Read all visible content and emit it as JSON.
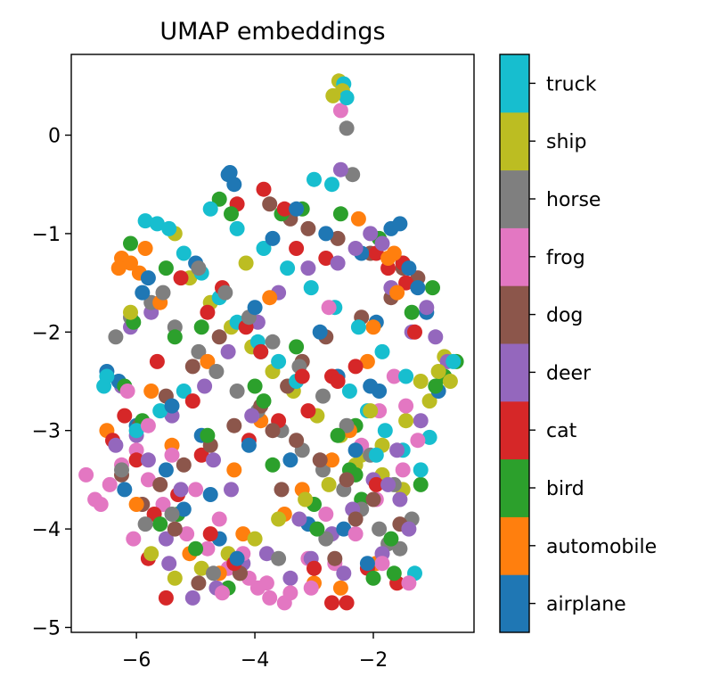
{
  "chart_data": {
    "type": "scatter",
    "title": "UMAP embeddings",
    "xlabel": "",
    "ylabel": "",
    "xlim": [
      -7.1,
      -0.3
    ],
    "ylim": [
      -5.05,
      0.82
    ],
    "xticks": [
      -6,
      -4,
      -2
    ],
    "yticks": [
      0,
      -1,
      -2,
      -3,
      -4,
      -5
    ],
    "xtick_labels": [
      "−6",
      "−4",
      "−2"
    ],
    "ytick_labels": [
      "0",
      "−1",
      "−2",
      "−3",
      "−4",
      "−5"
    ],
    "grid": false,
    "colorbar": {
      "placement": "right",
      "labels": [
        "airplane",
        "automobile",
        "bird",
        "cat",
        "deer",
        "dog",
        "frog",
        "horse",
        "ship",
        "truck"
      ],
      "colors": [
        "#1f77b4",
        "#ff7f0e",
        "#2ca02c",
        "#d62728",
        "#9467bd",
        "#8c564b",
        "#e377c2",
        "#7f7f7f",
        "#bcbd22",
        "#17becf"
      ]
    },
    "series": [
      {
        "name": "airplane",
        "x": [
          -4.45,
          -4.42,
          -4.35,
          -1.95,
          -1.7,
          -1.55,
          -2.6,
          -2.8,
          -1.1,
          -5.0,
          -5.8,
          -2.2,
          -3.9,
          -6.3,
          -4.9,
          -4.1,
          -6.0,
          -1.9,
          -5.5,
          -3.4,
          -2.05,
          -4.75,
          -0.9,
          -5.2,
          -3.1,
          -2.5,
          -4.6,
          -6.5,
          -3.7,
          -2.3,
          -5.9,
          -1.4,
          -4.0,
          -2.9,
          -5.4,
          -3.3,
          -1.25,
          -6.2,
          -4.3,
          -2.1
        ],
        "y": [
          -0.4,
          -0.38,
          -0.5,
          -1.9,
          -0.95,
          -0.9,
          -2.45,
          -1.0,
          -1.8,
          -1.3,
          -1.45,
          -1.2,
          -2.2,
          -2.5,
          -3.05,
          -3.15,
          -2.95,
          -2.6,
          -3.4,
          -3.3,
          -2.55,
          -3.65,
          -2.6,
          -3.8,
          -3.95,
          -4.0,
          -4.1,
          -2.4,
          -1.05,
          -3.2,
          -1.6,
          -1.35,
          -1.75,
          -2.0,
          -2.75,
          -0.75,
          -1.55,
          -3.6,
          -4.3,
          -4.35
        ]
      },
      {
        "name": "automobile",
        "x": [
          -6.25,
          -6.1,
          -5.85,
          -5.95,
          -6.3,
          -5.6,
          -4.8,
          -3.9,
          -2.1,
          -2.0,
          -1.75,
          -1.65,
          -2.4,
          -2.7,
          -3.2,
          -3.5,
          -4.2,
          -5.1,
          -5.4,
          -6.5,
          -6.0,
          -4.6,
          -3.0,
          -2.55,
          -1.95,
          -4.35,
          -5.75,
          -3.75,
          -2.25,
          -1.6
        ],
        "y": [
          -1.25,
          -1.3,
          -1.15,
          -1.4,
          -1.35,
          -1.7,
          -2.3,
          -2.9,
          -2.3,
          -1.95,
          -1.25,
          -1.2,
          -3.0,
          -3.3,
          -3.6,
          -3.85,
          -4.05,
          -4.25,
          -3.15,
          -3.0,
          -3.75,
          -4.45,
          -4.55,
          -4.6,
          -4.35,
          -3.4,
          -2.6,
          -1.65,
          -0.85,
          -1.6
        ]
      },
      {
        "name": "bird",
        "x": [
          -4.6,
          -4.4,
          -3.55,
          -3.2,
          -2.55,
          -1.9,
          -1.5,
          -1.0,
          -0.6,
          -0.8,
          -1.2,
          -2.3,
          -2.2,
          -3.0,
          -3.7,
          -4.0,
          -4.8,
          -5.3,
          -5.0,
          -5.6,
          -6.1,
          -6.05,
          -5.35,
          -4.25,
          -4.45,
          -2.4,
          -2.3,
          -1.35,
          -2.6,
          -3.3,
          -6.2,
          -5.9,
          -4.9,
          -3.85,
          -2.95,
          -1.7,
          -0.95,
          -5.5,
          -1.65,
          -2.0
        ],
        "y": [
          -0.65,
          -0.8,
          -0.8,
          -0.75,
          -0.8,
          -1.05,
          -1.3,
          -1.55,
          -2.3,
          -2.45,
          -3.55,
          -2.95,
          -3.7,
          -3.75,
          -3.35,
          -2.55,
          -3.05,
          -3.85,
          -4.2,
          -3.95,
          -1.1,
          -1.9,
          -2.05,
          -4.45,
          -4.6,
          -3.4,
          -3.45,
          -1.8,
          -3.05,
          -2.15,
          -2.55,
          -2.9,
          -1.95,
          -2.7,
          -4.0,
          -4.1,
          -2.55,
          -1.35,
          -4.45,
          -4.5
        ]
      },
      {
        "name": "cat",
        "x": [
          -4.3,
          -3.85,
          -3.5,
          -3.3,
          -2.8,
          -1.95,
          -1.75,
          -1.5,
          -1.45,
          -2.3,
          -2.7,
          -3.1,
          -3.6,
          -4.1,
          -4.9,
          -5.3,
          -5.7,
          -6.0,
          -6.2,
          -5.65,
          -5.25,
          -4.55,
          -4.15,
          -3.2,
          -2.6,
          -1.95,
          -2.1,
          -2.7,
          -5.5,
          -5.8,
          -4.75,
          -4.35,
          -3.0,
          -2.45,
          -1.6,
          -3.9,
          -4.8,
          -5.05,
          -6.4,
          -1.3
        ],
        "y": [
          -0.7,
          -0.55,
          -0.75,
          -1.15,
          -1.25,
          -1.2,
          -1.35,
          -1.3,
          -1.5,
          -2.35,
          -2.45,
          -2.8,
          -2.9,
          -3.1,
          -3.25,
          -3.65,
          -3.85,
          -3.3,
          -2.85,
          -2.3,
          -1.45,
          -1.55,
          -1.95,
          -2.45,
          -2.5,
          -3.55,
          -4.4,
          -4.75,
          -4.7,
          -4.3,
          -4.05,
          -4.35,
          -4.4,
          -4.75,
          -4.55,
          -2.2,
          -1.8,
          -2.7,
          -3.1,
          -2.0
        ]
      },
      {
        "name": "deer",
        "x": [
          -6.25,
          -6.1,
          -5.75,
          -6.0,
          -5.4,
          -4.85,
          -4.45,
          -3.95,
          -3.6,
          -3.1,
          -2.6,
          -2.3,
          -2.05,
          -1.85,
          -1.7,
          -1.35,
          -1.1,
          -0.75,
          -1.2,
          -1.6,
          -2.0,
          -2.35,
          -2.7,
          -3.05,
          -3.4,
          -3.8,
          -4.2,
          -4.65,
          -5.05,
          -5.45,
          -5.5,
          -5.25,
          -4.7,
          -4.4,
          -1.55,
          -1.4,
          -1.85,
          -2.5,
          -3.25,
          -2.55,
          -1.75,
          -0.95,
          -4.05,
          -5.8,
          -6.35
        ],
        "y": [
          -2.55,
          -1.95,
          -1.8,
          -3.05,
          -2.85,
          -2.55,
          -2.2,
          -1.9,
          -1.6,
          -1.35,
          -1.3,
          -1.15,
          -1.0,
          -1.1,
          -1.55,
          -2.0,
          -1.75,
          -2.3,
          -2.9,
          -3.2,
          -3.5,
          -3.8,
          -4.05,
          -4.3,
          -4.5,
          -4.25,
          -4.35,
          -4.6,
          -4.7,
          -4.35,
          -4.1,
          -3.6,
          -3.3,
          -3.6,
          -3.7,
          -4.0,
          -4.25,
          -4.45,
          -3.9,
          -0.35,
          -3.55,
          -2.05,
          -2.85,
          -3.3,
          -3.15
        ]
      },
      {
        "name": "dog",
        "x": [
          -3.75,
          -3.4,
          -3.1,
          -2.6,
          -2.05,
          -1.5,
          -1.25,
          -1.7,
          -2.2,
          -2.8,
          -3.2,
          -3.45,
          -3.9,
          -4.35,
          -4.75,
          -5.2,
          -5.6,
          -5.9,
          -6.25,
          -5.95,
          -5.5,
          -5.05,
          -4.6,
          -3.7,
          -3.3,
          -2.9,
          -2.45,
          -2.0,
          -1.55,
          -2.65,
          -4.25,
          -4.95,
          -5.35,
          -3.55,
          -2.3
        ],
        "y": [
          -0.7,
          -0.85,
          -0.95,
          -1.05,
          -1.2,
          -1.35,
          -1.45,
          -1.65,
          -1.85,
          -2.05,
          -2.3,
          -2.55,
          -2.75,
          -2.95,
          -3.15,
          -3.35,
          -3.55,
          -3.75,
          -3.45,
          -2.95,
          -2.65,
          -2.35,
          -2.05,
          -3.0,
          -3.1,
          -3.3,
          -3.5,
          -3.7,
          -3.95,
          -4.3,
          -4.45,
          -4.55,
          -4.0,
          -3.6,
          -3.9
        ]
      },
      {
        "name": "frog",
        "x": [
          -2.55,
          -6.85,
          -6.7,
          -6.6,
          -6.45,
          -6.25,
          -6.0,
          -5.8,
          -5.55,
          -5.15,
          -4.8,
          -4.45,
          -4.1,
          -3.75,
          -3.5,
          -3.1,
          -2.8,
          -2.45,
          -2.2,
          -1.9,
          -1.65,
          -1.45,
          -1.25,
          -1.5,
          -1.95,
          -2.3,
          -2.65,
          -3.05,
          -3.4,
          -3.8,
          -4.2,
          -4.6,
          -5.0,
          -5.4,
          -5.8,
          -6.15,
          -6.05,
          -1.85,
          -2.75,
          -4.55,
          -3.95,
          -1.4
        ],
        "y": [
          0.25,
          -3.45,
          -3.7,
          -3.75,
          -3.55,
          -3.35,
          -3.2,
          -3.5,
          -3.75,
          -4.05,
          -4.2,
          -4.4,
          -4.5,
          -4.7,
          -4.75,
          -4.3,
          -3.85,
          -3.5,
          -3.15,
          -2.8,
          -2.45,
          -2.75,
          -3.1,
          -3.4,
          -3.7,
          -4.05,
          -4.35,
          -4.6,
          -4.65,
          -4.55,
          -4.25,
          -3.9,
          -3.6,
          -3.25,
          -2.95,
          -2.6,
          -4.1,
          -4.35,
          -1.75,
          -4.65,
          -4.6,
          -4.55
        ]
      },
      {
        "name": "horse",
        "x": [
          -2.45,
          -6.35,
          -6.1,
          -5.75,
          -5.35,
          -4.95,
          -4.65,
          -4.3,
          -3.95,
          -3.55,
          -3.2,
          -2.85,
          -2.5,
          -2.2,
          -1.9,
          -1.55,
          -1.35,
          -1.65,
          -2.05,
          -2.45,
          -2.85,
          -3.25,
          -3.7,
          -4.1,
          -4.5,
          -4.95,
          -5.4,
          -5.85,
          -6.25,
          -2.8,
          -3.6,
          -4.7,
          -2.35,
          -1.75,
          -5.55
        ],
        "y": [
          0.07,
          -2.05,
          -1.85,
          -1.7,
          -1.95,
          -2.2,
          -2.4,
          -2.6,
          -2.8,
          -3.0,
          -3.2,
          -3.4,
          -3.6,
          -3.8,
          -4.0,
          -4.2,
          -3.9,
          -3.55,
          -3.25,
          -2.95,
          -2.65,
          -2.35,
          -2.1,
          -1.85,
          -1.6,
          -1.35,
          -3.85,
          -3.95,
          -3.4,
          -4.1,
          -4.3,
          -4.45,
          -0.4,
          -4.15,
          -1.6
        ]
      },
      {
        "name": "ship",
        "x": [
          -2.58,
          -2.52,
          -2.68,
          -5.35,
          -5.1,
          -4.75,
          -4.4,
          -4.05,
          -3.7,
          -3.35,
          -2.95,
          -2.55,
          -2.2,
          -1.85,
          -1.5,
          -1.2,
          -0.8,
          -0.7,
          -1.05,
          -1.45,
          -1.85,
          -2.3,
          -2.75,
          -3.15,
          -3.6,
          -4.0,
          -4.45,
          -4.9,
          -5.35,
          -5.75,
          -6.1,
          -2.05,
          -0.9,
          -4.15
        ],
        "y": [
          0.55,
          0.45,
          0.4,
          -1.0,
          -1.45,
          -1.7,
          -1.95,
          -2.15,
          -2.4,
          -2.6,
          -2.85,
          -3.05,
          -3.25,
          -3.45,
          -3.6,
          -2.5,
          -2.25,
          -2.5,
          -2.7,
          -2.9,
          -3.15,
          -3.35,
          -3.55,
          -3.7,
          -3.9,
          -4.1,
          -4.25,
          -4.4,
          -4.5,
          -4.25,
          -1.8,
          -2.8,
          -2.4,
          -1.3
        ]
      },
      {
        "name": "truck",
        "x": [
          -2.5,
          -2.45,
          -5.85,
          -5.65,
          -5.45,
          -5.2,
          -4.9,
          -4.6,
          -4.3,
          -3.95,
          -3.6,
          -3.3,
          -3.0,
          -2.7,
          -2.4,
          -2.1,
          -1.8,
          -1.5,
          -1.2,
          -1.05,
          -1.45,
          -1.85,
          -2.25,
          -2.65,
          -3.05,
          -3.45,
          -3.85,
          -4.3,
          -4.75,
          -5.2,
          -5.6,
          -6.0,
          -6.5,
          -6.55,
          -1.95,
          -0.65,
          -1.3
        ],
        "y": [
          0.52,
          0.38,
          -0.87,
          -0.9,
          -0.95,
          -1.2,
          -1.4,
          -1.65,
          -1.9,
          -2.1,
          -2.3,
          -2.5,
          -0.45,
          -0.5,
          -2.6,
          -2.8,
          -3.0,
          -3.2,
          -3.4,
          -3.07,
          -2.45,
          -2.2,
          -1.95,
          -1.75,
          -1.55,
          -1.35,
          -1.15,
          -0.95,
          -0.75,
          -2.6,
          -2.8,
          -3.0,
          -2.45,
          -2.55,
          -3.25,
          -2.3,
          -4.45
        ]
      }
    ]
  }
}
